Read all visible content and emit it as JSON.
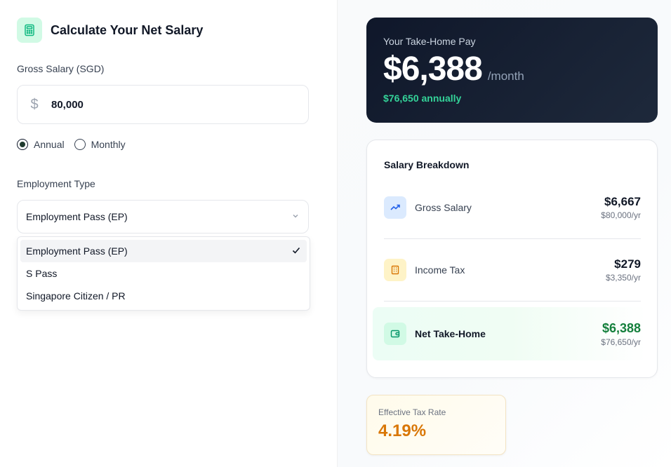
{
  "calculator": {
    "title": "Calculate Your Net Salary",
    "gross_label": "Gross Salary (SGD)",
    "gross_value": "80,000",
    "currency_symbol": "$",
    "period_options": [
      "Annual",
      "Monthly"
    ],
    "period_selected": "Annual",
    "employment_label": "Employment Type",
    "employment_selected": "Employment Pass (EP)",
    "employment_options": [
      "Employment Pass (EP)",
      "S Pass",
      "Singapore Citizen / PR"
    ]
  },
  "take_home": {
    "label": "Your Take-Home Pay",
    "amount": "$6,388",
    "unit": "/month",
    "annual": "$76,650 annually"
  },
  "breakdown": {
    "title": "Salary Breakdown",
    "rows": [
      {
        "label": "Gross Salary",
        "value": "$6,667",
        "sub": "$80,000/yr",
        "icon": "trending-up-icon"
      },
      {
        "label": "Income Tax",
        "value": "$279",
        "sub": "$3,350/yr",
        "icon": "building-icon"
      },
      {
        "label": "Net Take-Home",
        "value": "$6,388",
        "sub": "$76,650/yr",
        "icon": "wallet-icon"
      }
    ]
  },
  "tax_rate": {
    "label": "Effective Tax Rate",
    "value": "4.19%"
  },
  "colors": {
    "accent_green": "#15803d",
    "hero_bg": "#0f172a",
    "tax_orange": "#d97706"
  }
}
